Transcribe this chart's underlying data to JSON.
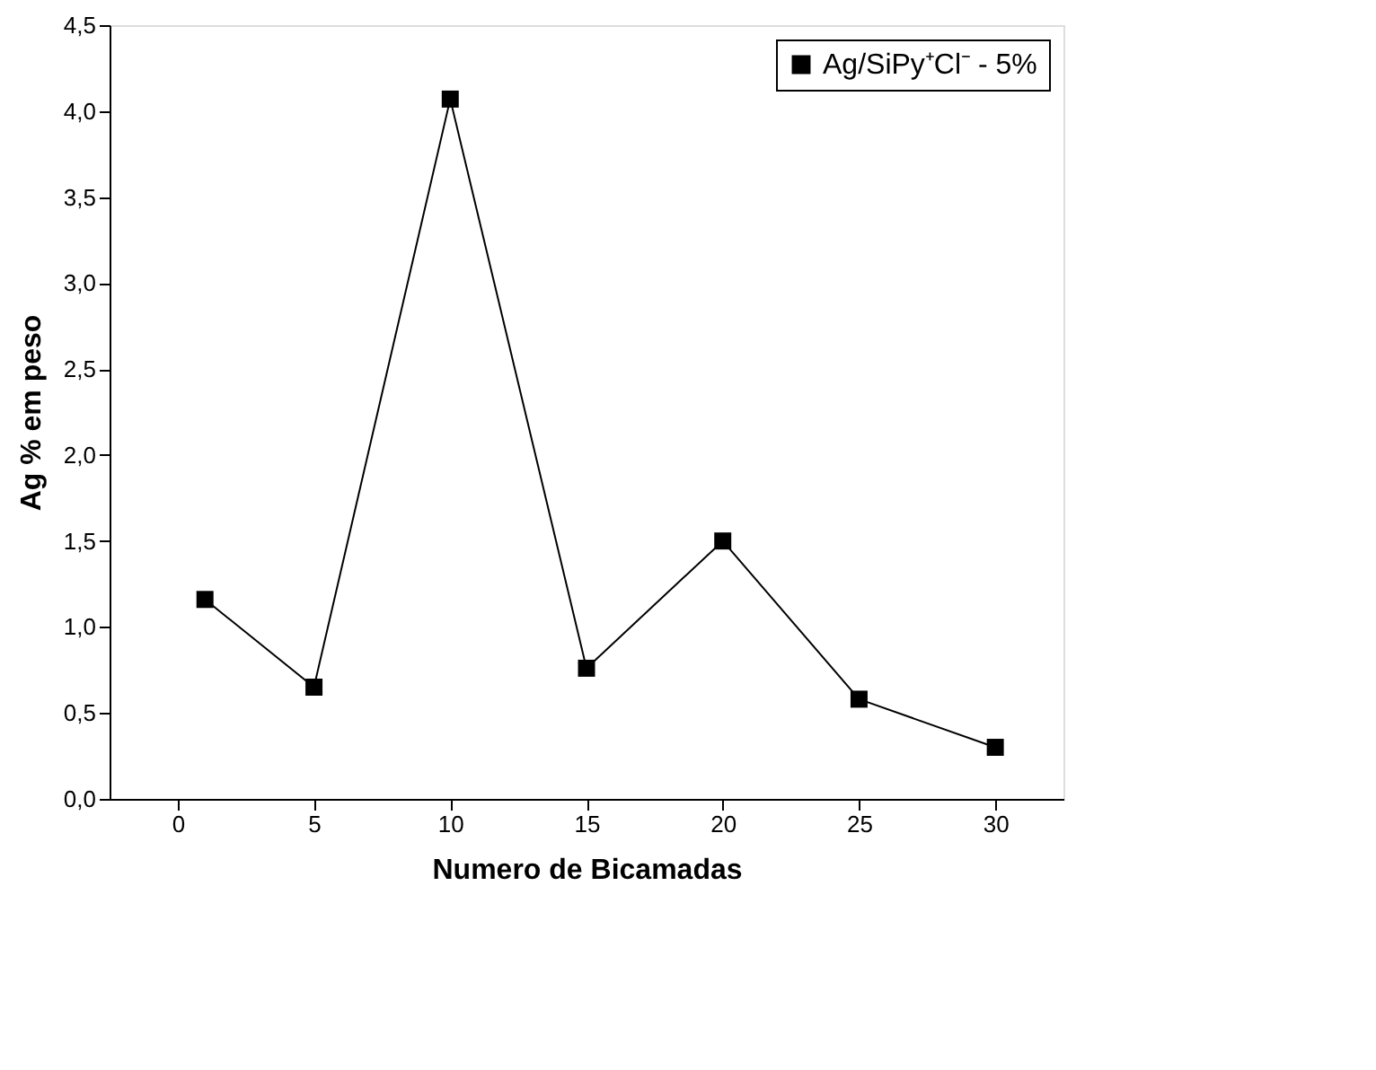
{
  "chart_data": {
    "type": "line",
    "xlabel": "Numero de Bicamadas",
    "ylabel": "Ag % em peso",
    "x": [
      1,
      5,
      10,
      15,
      20,
      25,
      30
    ],
    "series": [
      {
        "name": "Ag/SiPy⁺Cl⁻ - 5%",
        "color": "#000000",
        "values": [
          1.16,
          0.65,
          4.07,
          0.76,
          1.5,
          0.58,
          0.3
        ]
      }
    ],
    "xlim": [
      -2.5,
      32.5
    ],
    "xticks": [
      0,
      5,
      10,
      15,
      20,
      25,
      30
    ],
    "ylim": [
      0,
      4.5
    ],
    "yticks": [
      {
        "value": 0,
        "label": "0,0"
      },
      {
        "value": 0.5,
        "label": "0,5"
      },
      {
        "value": 1,
        "label": "1,0"
      },
      {
        "value": 1.5,
        "label": "1,5"
      },
      {
        "value": 2,
        "label": "2,0"
      },
      {
        "value": 2.5,
        "label": "2,5"
      },
      {
        "value": 3,
        "label": "3,0"
      },
      {
        "value": 3.5,
        "label": "3,5"
      },
      {
        "value": 4,
        "label": "4,0"
      },
      {
        "value": 4.5,
        "label": "4,5"
      }
    ],
    "marker": "square",
    "line_style": "solid",
    "legend": "top right",
    "grid": false
  }
}
